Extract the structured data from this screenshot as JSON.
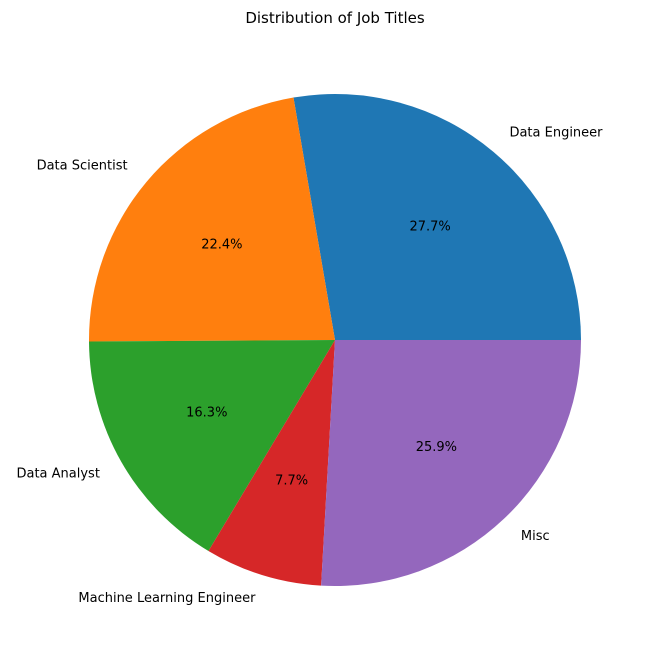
{
  "chart_data": {
    "type": "pie",
    "title": "Distribution of Job Titles",
    "slices": [
      {
        "label": "Data Engineer",
        "value": 27.7,
        "pct_label": "27.7%",
        "color": "#1f77b4"
      },
      {
        "label": "Data Scientist",
        "value": 22.4,
        "pct_label": "22.4%",
        "color": "#ff7f0e"
      },
      {
        "label": "Data Analyst",
        "value": 16.3,
        "pct_label": "16.3%",
        "color": "#2ca02c"
      },
      {
        "label": "Machine Learning Engineer",
        "value": 7.7,
        "pct_label": "7.7%",
        "color": "#d62728"
      },
      {
        "label": "Misc",
        "value": 25.9,
        "pct_label": "25.9%",
        "color": "#9467bd"
      }
    ],
    "start_angle_deg": 0,
    "direction": "counterclockwise",
    "legend": "none"
  }
}
